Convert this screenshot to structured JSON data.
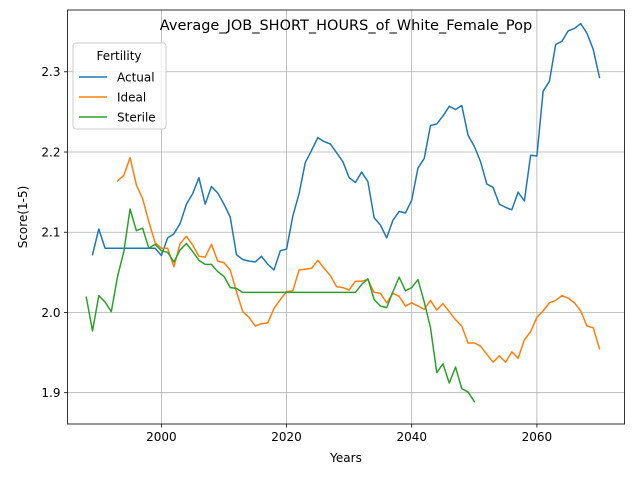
{
  "chart_data": {
    "type": "line",
    "title": "Average_JOB_SHORT_HOURS_of_White_Female_Pop",
    "xlabel": "Years",
    "ylabel": "Score(1-5)",
    "xlim": [
      1985,
      2074
    ],
    "ylim": [
      1.861,
      2.377
    ],
    "xticks": [
      2000,
      2020,
      2040,
      2060
    ],
    "yticks": [
      1.9,
      2.0,
      2.1,
      2.2,
      2.3
    ],
    "xtick_labels": [
      "2000",
      "2020",
      "2040",
      "2060"
    ],
    "ytick_labels": [
      "1.9",
      "2.0",
      "2.1",
      "2.2",
      "2.3"
    ],
    "grid": true,
    "legend": {
      "title": "Fertility",
      "placement": "top-left"
    },
    "series": [
      {
        "name": "Actual",
        "color": "#1f77b4",
        "points": [
          [
            1989,
            2.072
          ],
          [
            1990,
            2.104
          ],
          [
            1991,
            2.08
          ],
          [
            1992,
            2.08
          ],
          [
            1993,
            2.08
          ],
          [
            1994,
            2.08
          ],
          [
            1995,
            2.08
          ],
          [
            1996,
            2.08
          ],
          [
            1997,
            2.08
          ],
          [
            1998,
            2.08
          ],
          [
            1999,
            2.08
          ],
          [
            2000,
            2.071
          ],
          [
            2001,
            2.093
          ],
          [
            2002,
            2.098
          ],
          [
            2003,
            2.111
          ],
          [
            2004,
            2.135
          ],
          [
            2005,
            2.148
          ],
          [
            2006,
            2.168
          ],
          [
            2007,
            2.135
          ],
          [
            2008,
            2.157
          ],
          [
            2009,
            2.149
          ],
          [
            2010,
            2.135
          ],
          [
            2011,
            2.119
          ],
          [
            2012,
            2.072
          ],
          [
            2013,
            2.066
          ],
          [
            2014,
            2.064
          ],
          [
            2015,
            2.063
          ],
          [
            2016,
            2.07
          ],
          [
            2017,
            2.06
          ],
          [
            2018,
            2.053
          ],
          [
            2019,
            2.077
          ],
          [
            2020,
            2.079
          ],
          [
            2021,
            2.12
          ],
          [
            2022,
            2.148
          ],
          [
            2023,
            2.187
          ],
          [
            2024,
            2.202
          ],
          [
            2025,
            2.218
          ],
          [
            2026,
            2.213
          ],
          [
            2027,
            2.21
          ],
          [
            2028,
            2.199
          ],
          [
            2029,
            2.188
          ],
          [
            2030,
            2.168
          ],
          [
            2031,
            2.162
          ],
          [
            2032,
            2.175
          ],
          [
            2033,
            2.163
          ],
          [
            2034,
            2.118
          ],
          [
            2035,
            2.109
          ],
          [
            2036,
            2.093
          ],
          [
            2037,
            2.115
          ],
          [
            2038,
            2.126
          ],
          [
            2039,
            2.124
          ],
          [
            2040,
            2.14
          ],
          [
            2041,
            2.18
          ],
          [
            2042,
            2.192
          ],
          [
            2043,
            2.233
          ],
          [
            2044,
            2.235
          ],
          [
            2045,
            2.245
          ],
          [
            2046,
            2.257
          ],
          [
            2047,
            2.253
          ],
          [
            2048,
            2.258
          ],
          [
            2049,
            2.221
          ],
          [
            2050,
            2.207
          ],
          [
            2051,
            2.188
          ],
          [
            2052,
            2.16
          ],
          [
            2053,
            2.156
          ],
          [
            2054,
            2.135
          ],
          [
            2055,
            2.131
          ],
          [
            2056,
            2.128
          ],
          [
            2057,
            2.15
          ],
          [
            2058,
            2.139
          ],
          [
            2059,
            2.196
          ],
          [
            2060,
            2.195
          ],
          [
            2061,
            2.276
          ],
          [
            2062,
            2.288
          ],
          [
            2063,
            2.334
          ],
          [
            2064,
            2.338
          ],
          [
            2065,
            2.351
          ],
          [
            2066,
            2.354
          ],
          [
            2067,
            2.36
          ],
          [
            2068,
            2.348
          ],
          [
            2069,
            2.328
          ],
          [
            2070,
            2.293
          ]
        ]
      },
      {
        "name": "Ideal",
        "color": "#ff7f0e",
        "points": [
          [
            1993,
            2.164
          ],
          [
            1994,
            2.171
          ],
          [
            1995,
            2.193
          ],
          [
            1996,
            2.159
          ],
          [
            1997,
            2.142
          ],
          [
            1998,
            2.113
          ],
          [
            1999,
            2.087
          ],
          [
            2000,
            2.08
          ],
          [
            2001,
            2.08
          ],
          [
            2002,
            2.057
          ],
          [
            2003,
            2.086
          ],
          [
            2004,
            2.095
          ],
          [
            2005,
            2.084
          ],
          [
            2006,
            2.07
          ],
          [
            2007,
            2.069
          ],
          [
            2008,
            2.085
          ],
          [
            2009,
            2.064
          ],
          [
            2010,
            2.062
          ],
          [
            2011,
            2.053
          ],
          [
            2012,
            2.026
          ],
          [
            2013,
            2.001
          ],
          [
            2014,
            1.994
          ],
          [
            2015,
            1.983
          ],
          [
            2016,
            1.986
          ],
          [
            2017,
            1.987
          ],
          [
            2018,
            2.005
          ],
          [
            2019,
            2.016
          ],
          [
            2020,
            2.026
          ],
          [
            2021,
            2.027
          ],
          [
            2022,
            2.053
          ],
          [
            2023,
            2.054
          ],
          [
            2024,
            2.055
          ],
          [
            2025,
            2.065
          ],
          [
            2026,
            2.055
          ],
          [
            2027,
            2.046
          ],
          [
            2028,
            2.032
          ],
          [
            2029,
            2.031
          ],
          [
            2030,
            2.028
          ],
          [
            2031,
            2.039
          ],
          [
            2032,
            2.039
          ],
          [
            2033,
            2.041
          ],
          [
            2034,
            2.025
          ],
          [
            2035,
            2.024
          ],
          [
            2036,
            2.012
          ],
          [
            2037,
            2.024
          ],
          [
            2038,
            2.02
          ],
          [
            2039,
            2.008
          ],
          [
            2040,
            2.012
          ],
          [
            2041,
            2.008
          ],
          [
            2042,
            2.004
          ],
          [
            2043,
            2.015
          ],
          [
            2044,
            2.003
          ],
          [
            2045,
            2.011
          ],
          [
            2046,
            2.001
          ],
          [
            2047,
            1.991
          ],
          [
            2048,
            1.983
          ],
          [
            2049,
            1.962
          ],
          [
            2050,
            1.962
          ],
          [
            2051,
            1.958
          ],
          [
            2052,
            1.948
          ],
          [
            2053,
            1.938
          ],
          [
            2054,
            1.946
          ],
          [
            2055,
            1.938
          ],
          [
            2056,
            1.951
          ],
          [
            2057,
            1.943
          ],
          [
            2058,
            1.966
          ],
          [
            2059,
            1.976
          ],
          [
            2060,
            1.994
          ],
          [
            2061,
            2.002
          ],
          [
            2062,
            2.012
          ],
          [
            2063,
            2.015
          ],
          [
            2064,
            2.021
          ],
          [
            2065,
            2.018
          ],
          [
            2066,
            2.012
          ],
          [
            2067,
            2.002
          ],
          [
            2068,
            1.983
          ],
          [
            2069,
            1.981
          ],
          [
            2070,
            1.955
          ]
        ]
      },
      {
        "name": "Sterile",
        "color": "#2ca02c",
        "points": [
          [
            1988,
            2.019
          ],
          [
            1989,
            1.977
          ],
          [
            1990,
            2.021
          ],
          [
            1991,
            2.013
          ],
          [
            1992,
            2.001
          ],
          [
            1993,
            2.045
          ],
          [
            1994,
            2.076
          ],
          [
            1995,
            2.129
          ],
          [
            1996,
            2.102
          ],
          [
            1997,
            2.105
          ],
          [
            1998,
            2.08
          ],
          [
            1999,
            2.085
          ],
          [
            2000,
            2.077
          ],
          [
            2001,
            2.075
          ],
          [
            2002,
            2.063
          ],
          [
            2003,
            2.078
          ],
          [
            2004,
            2.086
          ],
          [
            2005,
            2.076
          ],
          [
            2006,
            2.065
          ],
          [
            2007,
            2.06
          ],
          [
            2008,
            2.06
          ],
          [
            2009,
            2.051
          ],
          [
            2010,
            2.045
          ],
          [
            2011,
            2.031
          ],
          [
            2012,
            2.03
          ],
          [
            2013,
            2.025
          ],
          [
            2014,
            2.025
          ],
          [
            2015,
            2.025
          ],
          [
            2016,
            2.025
          ],
          [
            2017,
            2.025
          ],
          [
            2018,
            2.025
          ],
          [
            2019,
            2.025
          ],
          [
            2020,
            2.025
          ],
          [
            2021,
            2.025
          ],
          [
            2022,
            2.025
          ],
          [
            2023,
            2.025
          ],
          [
            2024,
            2.025
          ],
          [
            2025,
            2.025
          ],
          [
            2026,
            2.025
          ],
          [
            2027,
            2.025
          ],
          [
            2028,
            2.025
          ],
          [
            2029,
            2.025
          ],
          [
            2030,
            2.025
          ],
          [
            2031,
            2.025
          ],
          [
            2032,
            2.035
          ],
          [
            2033,
            2.042
          ],
          [
            2034,
            2.016
          ],
          [
            2035,
            2.008
          ],
          [
            2036,
            2.006
          ],
          [
            2037,
            2.026
          ],
          [
            2038,
            2.044
          ],
          [
            2039,
            2.027
          ],
          [
            2040,
            2.031
          ],
          [
            2041,
            2.041
          ],
          [
            2042,
            2.013
          ],
          [
            2043,
            1.981
          ],
          [
            2044,
            1.925
          ],
          [
            2045,
            1.936
          ],
          [
            2046,
            1.912
          ],
          [
            2047,
            1.932
          ],
          [
            2048,
            1.905
          ],
          [
            2049,
            1.901
          ],
          [
            2050,
            1.889
          ]
        ]
      }
    ]
  }
}
